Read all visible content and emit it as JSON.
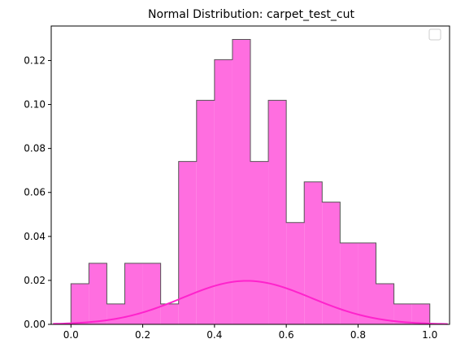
{
  "chart_data": {
    "type": "bar",
    "title": "Normal Distribution: carpet_test_cut",
    "xlabel": "",
    "ylabel": "",
    "xlim": [
      -0.055,
      1.055
    ],
    "ylim": [
      0,
      0.1357
    ],
    "grid": false,
    "legend": "top-right (empty)",
    "x_ticks": [
      0.0,
      0.2,
      0.4,
      0.6,
      0.8,
      1.0
    ],
    "x_tick_labels": [
      "0.0",
      "0.2",
      "0.4",
      "0.6",
      "0.8",
      "1.0"
    ],
    "y_ticks": [
      0.0,
      0.02,
      0.04,
      0.06,
      0.08,
      0.1,
      0.12
    ],
    "y_tick_labels": [
      "0.00",
      "0.02",
      "0.04",
      "0.06",
      "0.08",
      "0.10",
      "0.12"
    ],
    "histogram": {
      "bin_edges": [
        0.0,
        0.05,
        0.1,
        0.15,
        0.2,
        0.25,
        0.3,
        0.35,
        0.4,
        0.45,
        0.5,
        0.55,
        0.6,
        0.65,
        0.7,
        0.75,
        0.8,
        0.85,
        0.9,
        0.95,
        1.0
      ],
      "values": [
        0.0185,
        0.0278,
        0.0093,
        0.0278,
        0.0278,
        0.0093,
        0.0741,
        0.1019,
        0.1204,
        0.1296,
        0.0741,
        0.1019,
        0.0463,
        0.0648,
        0.0556,
        0.037,
        0.037,
        0.0185,
        0.0093,
        0.0093
      ],
      "fill_color": "#ff6ee0",
      "edge_color": "#555555"
    },
    "normal_curve": {
      "mean": 0.49,
      "peak": 0.0198,
      "sigma": 0.18,
      "x_range": [
        -0.05,
        1.05
      ],
      "color": "#ff22cc"
    }
  }
}
